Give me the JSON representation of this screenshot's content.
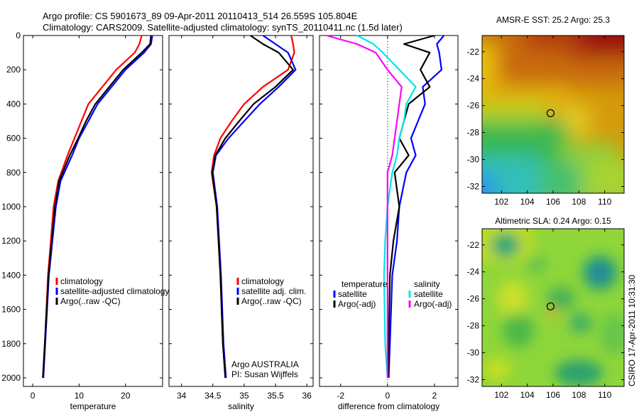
{
  "title_line1": "Argo profile: CS 5901673_89 09-Apr-2011 20110413_514 26.559S 105.804E",
  "title_line2": "Climatology: CARS2009. Satellite-adjusted climatology: synTS_20110411.nc (1.5d later)",
  "credit": "CSIRO 17-Apr-2011 10:31:30",
  "chart_data": [
    {
      "type": "line",
      "id": "temperature",
      "xlabel": "temperature",
      "xlim": [
        -2,
        28
      ],
      "xticks": [
        "0",
        "10",
        "20"
      ],
      "xtick_values": [
        0,
        10,
        20
      ],
      "ylim": [
        0,
        2050
      ],
      "yticks": [
        "0",
        "200",
        "400",
        "600",
        "800",
        "1000",
        "1200",
        "1400",
        "1600",
        "1800",
        "2000"
      ],
      "ytick_values": [
        0,
        200,
        400,
        600,
        800,
        1000,
        1200,
        1400,
        1600,
        1800,
        2000
      ],
      "legend": [
        "climatology",
        "satellite-adjusted climatology",
        "Argo(..raw -QC)"
      ],
      "series": [
        {
          "name": "climatology",
          "color": "#ff0000",
          "x": [
            23.5,
            23.0,
            22.0,
            18.0,
            15.0,
            12.0,
            10.5,
            9.0,
            7.5,
            5.5,
            4.5,
            3.3,
            2.6,
            2.2
          ],
          "y": [
            0,
            50,
            100,
            200,
            300,
            400,
            500,
            600,
            700,
            850,
            1000,
            1400,
            1800,
            2000
          ]
        },
        {
          "name": "satellite-adjusted climatology",
          "color": "#0000ff",
          "x": [
            25.8,
            25.5,
            24.0,
            20.0,
            17.0,
            14.0,
            12.0,
            10.0,
            8.5,
            6.0,
            5.0,
            3.5,
            2.7,
            2.3
          ],
          "y": [
            0,
            50,
            100,
            200,
            300,
            400,
            500,
            600,
            700,
            850,
            1000,
            1400,
            1800,
            2000
          ]
        },
        {
          "name": "Argo(..raw -QC)",
          "color": "#000000",
          "x": [
            25.5,
            25.3,
            23.5,
            19.5,
            16.5,
            13.5,
            11.5,
            9.8,
            8.0,
            5.7,
            4.8,
            3.4,
            2.6,
            2.2
          ],
          "y": [
            0,
            50,
            100,
            200,
            300,
            400,
            500,
            600,
            700,
            850,
            1000,
            1400,
            1800,
            2000
          ]
        }
      ]
    },
    {
      "type": "line",
      "id": "salinity",
      "xlabel": "salinity",
      "xlim": [
        33.8,
        36.1
      ],
      "xticks": [
        "34",
        "34.5",
        "35",
        "35.5",
        "36"
      ],
      "xtick_values": [
        34,
        34.5,
        35,
        35.5,
        36
      ],
      "ylim": [
        0,
        2050
      ],
      "legend": [
        "climatology",
        "satellite adj. clim.",
        "Argo(..raw -QC)"
      ],
      "annotation": [
        "Argo AUSTRALIA",
        "PI: Susan Wijffels"
      ],
      "series": [
        {
          "name": "climatology",
          "color": "#ff0000",
          "x": [
            35.75,
            35.78,
            35.8,
            35.7,
            35.3,
            35.0,
            34.8,
            34.62,
            34.52,
            34.48,
            34.56,
            34.62,
            34.66,
            34.7
          ],
          "y": [
            0,
            50,
            100,
            200,
            300,
            400,
            500,
            600,
            700,
            800,
            1000,
            1400,
            1800,
            2000
          ]
        },
        {
          "name": "satellite adj. clim.",
          "color": "#0000ff",
          "x": [
            35.3,
            35.5,
            35.7,
            35.82,
            35.55,
            35.25,
            35.0,
            34.75,
            34.55,
            34.5,
            34.57,
            34.63,
            34.67,
            34.71
          ],
          "y": [
            0,
            50,
            100,
            200,
            300,
            400,
            500,
            600,
            700,
            800,
            1000,
            1400,
            1800,
            2000
          ]
        },
        {
          "name": "Argo(..raw -QC)",
          "color": "#000000",
          "x": [
            35.1,
            35.3,
            35.55,
            35.78,
            35.5,
            35.15,
            34.92,
            34.7,
            34.54,
            34.49,
            34.56,
            34.62,
            34.66,
            34.7
          ],
          "y": [
            0,
            50,
            100,
            200,
            300,
            400,
            500,
            600,
            700,
            800,
            1000,
            1400,
            1800,
            2000
          ]
        }
      ]
    },
    {
      "type": "line",
      "id": "difference",
      "xlabel": "difference from climatology",
      "xlim": [
        -2.9,
        3.0
      ],
      "xticks": [
        "-2",
        "0",
        "2"
      ],
      "xtick_values": [
        -2,
        0,
        2
      ],
      "ylim": [
        0,
        2050
      ],
      "legend": [
        "temperature",
        "satellite",
        "Argo(-adj)",
        "salinity",
        "satellite",
        "Argo(-adj)"
      ],
      "series": [
        {
          "name": "temperature satellite",
          "color": "#0000ff",
          "x": [
            2.4,
            2.1,
            2.2,
            2.3,
            1.5,
            1.6,
            1.3,
            1.0,
            1.2,
            0.8,
            0.5,
            0.4,
            0.2,
            0.1,
            0.05
          ],
          "y": [
            0,
            50,
            100,
            200,
            300,
            400,
            500,
            600,
            700,
            800,
            1000,
            1200,
            1400,
            1800,
            2000
          ]
        },
        {
          "name": "temperature Argo(-adj)",
          "color": "#000000",
          "x": [
            2.0,
            0.7,
            1.8,
            1.4,
            1.8,
            0.9,
            0.7,
            0.5,
            0.9,
            0.3,
            0.5,
            0.25,
            0.1,
            0.05,
            0.02
          ],
          "y": [
            0,
            50,
            100,
            200,
            300,
            400,
            500,
            600,
            700,
            800,
            1000,
            1200,
            1400,
            1800,
            2000
          ]
        },
        {
          "name": "salinity satellite",
          "color": "#00e5e5",
          "x": [
            -1.3,
            -0.6,
            -0.2,
            0.5,
            1.2,
            0.8,
            0.7,
            0.5,
            0.4,
            0.2,
            0.0,
            -0.1,
            -0.15,
            -0.1,
            0.0
          ],
          "y": [
            0,
            50,
            100,
            200,
            300,
            400,
            500,
            600,
            700,
            800,
            1000,
            1200,
            1400,
            1800,
            2000
          ]
        },
        {
          "name": "salinity Argo(-adj)",
          "color": "#ff00ff",
          "x": [
            -2.6,
            -1.3,
            -0.5,
            0.0,
            0.6,
            0.5,
            0.4,
            0.3,
            0.2,
            0.0,
            0.0,
            0.0,
            0.0,
            0.0,
            0.0
          ],
          "y": [
            0,
            50,
            100,
            200,
            300,
            400,
            500,
            600,
            700,
            800,
            1000,
            1200,
            1400,
            1800,
            2000
          ]
        }
      ]
    },
    {
      "type": "heatmap",
      "id": "sst",
      "title": "AMSR-E SST: 25.2 Argo: 25.3",
      "xlim": [
        100.5,
        111.5
      ],
      "ylim": [
        -32.5,
        -20.8
      ],
      "xticks": [
        "102",
        "104",
        "106",
        "108",
        "110"
      ],
      "xtick_values": [
        102,
        104,
        106,
        108,
        110
      ],
      "yticks": [
        "-22",
        "-24",
        "-26",
        "-28",
        "-30",
        "-32"
      ],
      "ytick_values": [
        -22,
        -24,
        -26,
        -28,
        -30,
        -32
      ],
      "marker": {
        "lon": 105.804,
        "lat": -26.559
      }
    },
    {
      "type": "heatmap",
      "id": "sla",
      "title": "Altimetric SLA: 0.24 Argo: 0.15",
      "xlim": [
        100.5,
        111.5
      ],
      "ylim": [
        -32.5,
        -20.8
      ],
      "xticks": [
        "102",
        "104",
        "106",
        "108",
        "110"
      ],
      "xtick_values": [
        102,
        104,
        106,
        108,
        110
      ],
      "yticks": [
        "-22",
        "-24",
        "-26",
        "-28",
        "-30",
        "-32"
      ],
      "ytick_values": [
        -22,
        -24,
        -26,
        -28,
        -30,
        -32
      ],
      "marker": {
        "lon": 105.804,
        "lat": -26.559
      }
    }
  ]
}
